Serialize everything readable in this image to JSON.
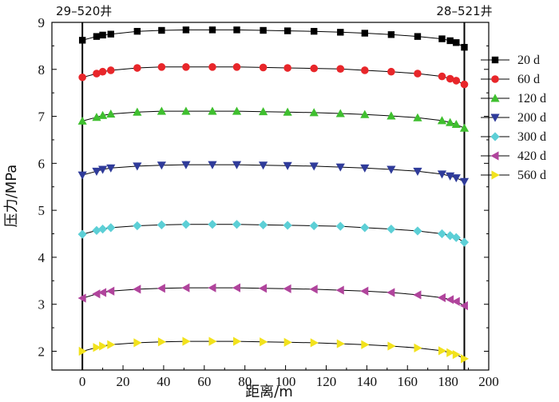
{
  "chart_data": {
    "type": "line",
    "xlabel": "距离/m",
    "ylabel": "压力/MPa",
    "xlim": [
      -15,
      200
    ],
    "ylim": [
      1.6,
      9
    ],
    "xticks": [
      0,
      20,
      40,
      60,
      80,
      100,
      120,
      140,
      160,
      180,
      200
    ],
    "yticks": [
      2,
      3,
      4,
      5,
      6,
      7,
      8,
      9
    ],
    "grid": false,
    "legend_position": "right",
    "wells": [
      {
        "label": "29–520井",
        "x": 0
      },
      {
        "label": "28–521井",
        "x": 188
      }
    ],
    "x": [
      0,
      7,
      10,
      14,
      27,
      39,
      51,
      64,
      76,
      89,
      101,
      114,
      127,
      139,
      152,
      165,
      177,
      181,
      184,
      188
    ],
    "series": [
      {
        "name": "20 d",
        "marker": "square",
        "color": "#000000",
        "values": [
          8.62,
          8.7,
          8.73,
          8.75,
          8.81,
          8.83,
          8.84,
          8.84,
          8.84,
          8.83,
          8.82,
          8.81,
          8.79,
          8.77,
          8.74,
          8.7,
          8.65,
          8.61,
          8.57,
          8.47
        ]
      },
      {
        "name": "60 d",
        "marker": "circle",
        "color": "#e8262a",
        "values": [
          7.83,
          7.91,
          7.95,
          7.98,
          8.03,
          8.05,
          8.05,
          8.05,
          8.05,
          8.04,
          8.03,
          8.02,
          8.01,
          7.98,
          7.95,
          7.91,
          7.85,
          7.8,
          7.76,
          7.68
        ]
      },
      {
        "name": "120 d",
        "marker": "triangle-up",
        "color": "#3fbf2f",
        "values": [
          6.9,
          6.98,
          7.02,
          7.05,
          7.09,
          7.11,
          7.11,
          7.11,
          7.11,
          7.1,
          7.09,
          7.08,
          7.06,
          7.04,
          7.01,
          6.97,
          6.91,
          6.87,
          6.83,
          6.75
        ]
      },
      {
        "name": "200 d",
        "marker": "triangle-down",
        "color": "#2f3b9a",
        "values": [
          5.75,
          5.83,
          5.87,
          5.9,
          5.94,
          5.96,
          5.97,
          5.97,
          5.97,
          5.96,
          5.95,
          5.94,
          5.92,
          5.9,
          5.87,
          5.83,
          5.77,
          5.73,
          5.69,
          5.61
        ]
      },
      {
        "name": "300 d",
        "marker": "diamond",
        "color": "#5ccfd6",
        "values": [
          4.49,
          4.57,
          4.6,
          4.63,
          4.67,
          4.69,
          4.7,
          4.7,
          4.7,
          4.69,
          4.68,
          4.67,
          4.66,
          4.63,
          4.6,
          4.56,
          4.5,
          4.46,
          4.42,
          4.32
        ]
      },
      {
        "name": "420 d",
        "marker": "triangle-left",
        "color": "#b0449c",
        "values": [
          3.13,
          3.22,
          3.25,
          3.28,
          3.32,
          3.34,
          3.35,
          3.35,
          3.35,
          3.34,
          3.33,
          3.32,
          3.3,
          3.28,
          3.25,
          3.2,
          3.14,
          3.1,
          3.06,
          2.97
        ]
      },
      {
        "name": "560 d",
        "marker": "triangle-right",
        "color": "#f2e21c",
        "values": [
          2.0,
          2.08,
          2.11,
          2.14,
          2.18,
          2.2,
          2.21,
          2.21,
          2.21,
          2.2,
          2.19,
          2.18,
          2.16,
          2.14,
          2.11,
          2.07,
          2.01,
          1.97,
          1.93,
          1.84
        ]
      }
    ]
  }
}
